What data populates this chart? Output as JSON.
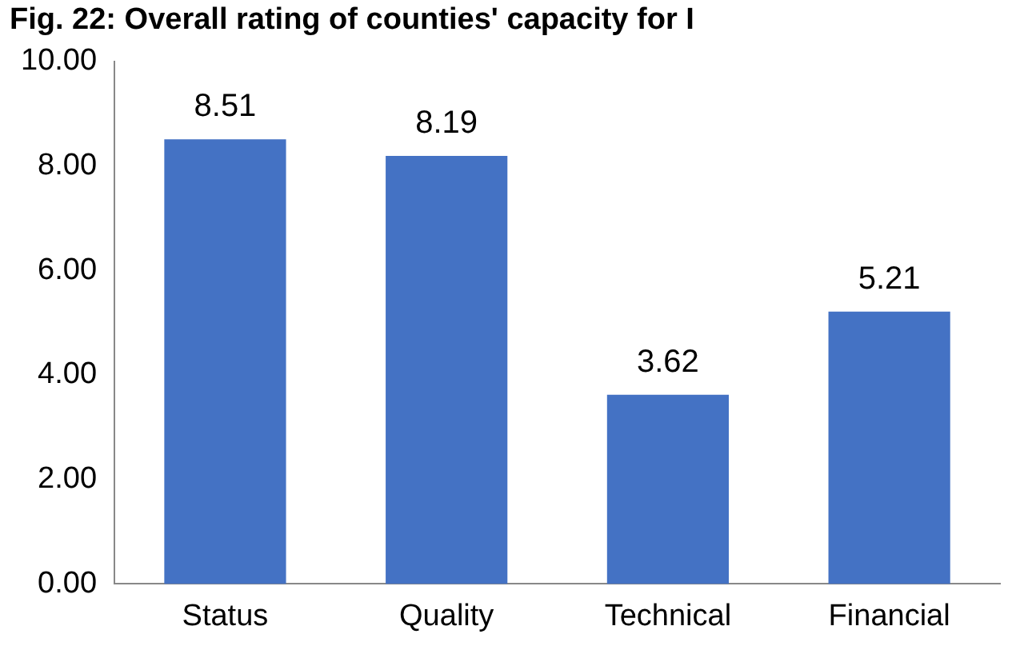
{
  "chart_data": {
    "type": "bar",
    "title": "Fig. 22: Overall rating of counties' capacity for I",
    "categories": [
      "Status",
      "Quality",
      "Technical",
      "Financial"
    ],
    "values": [
      8.51,
      8.19,
      3.62,
      5.21
    ],
    "color": "#4472c4",
    "ylim": [
      0,
      10
    ],
    "yticks": [
      {
        "value": 0,
        "label": "0.00"
      },
      {
        "value": 2,
        "label": "2.00"
      },
      {
        "value": 4,
        "label": "4.00"
      },
      {
        "value": 6,
        "label": "6.00"
      },
      {
        "value": 8,
        "label": "8.00"
      },
      {
        "value": 10,
        "label": "10.00"
      }
    ],
    "data_labels": true,
    "grid": false,
    "legend": false
  }
}
